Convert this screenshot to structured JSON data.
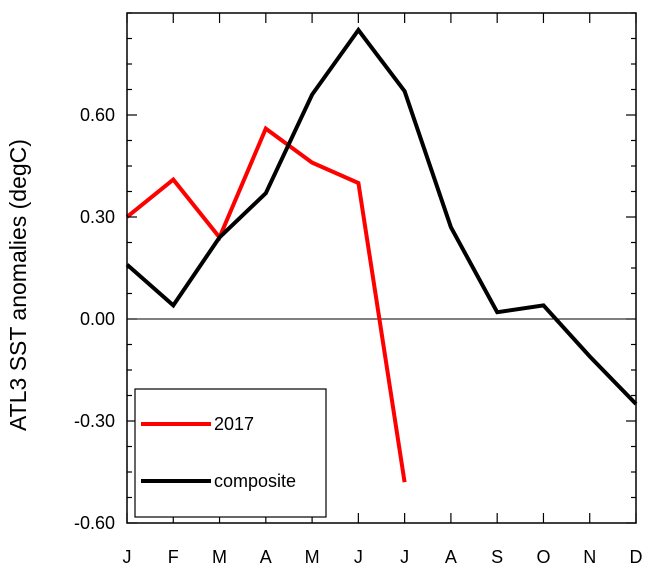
{
  "chart_data": {
    "type": "line",
    "title": "",
    "xlabel": "",
    "ylabel": "ATL3 SST anomalies (degC)",
    "categories": [
      "J",
      "F",
      "M",
      "A",
      "M",
      "J",
      "J",
      "A",
      "S",
      "O",
      "N",
      "D"
    ],
    "ylim": [
      -0.6,
      0.9
    ],
    "yticks": [
      -0.6,
      -0.3,
      0.0,
      0.3,
      0.6
    ],
    "ytick_labels": [
      "-0.60",
      "-0.30",
      "0.00",
      "0.30",
      "0.60"
    ],
    "zero_line": true,
    "grid": false,
    "legend_position": "bottom-left",
    "series": [
      {
        "name": "2017",
        "color": "#ff0000",
        "values": [
          0.3,
          0.41,
          0.24,
          0.56,
          0.46,
          0.4,
          -0.48,
          null,
          null,
          null,
          null,
          null
        ]
      },
      {
        "name": "composite",
        "color": "#000000",
        "values": [
          0.16,
          0.04,
          0.24,
          0.37,
          0.66,
          0.85,
          0.67,
          0.27,
          0.02,
          0.04,
          -0.11,
          -0.25
        ]
      }
    ]
  }
}
